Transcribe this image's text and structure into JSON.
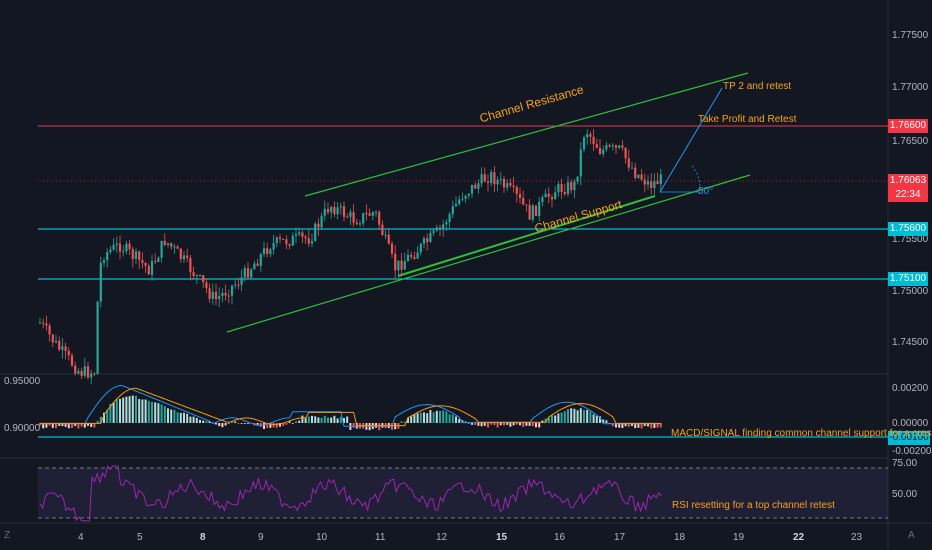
{
  "colors": {
    "background": "#131722",
    "up": "#26a69a",
    "down": "#ef5350",
    "resistance_line": "#f23645",
    "support_line": "#00e5ff",
    "channel": "#2fbf3a",
    "annotation": "#f7a21b",
    "macd": "#2196f3",
    "signal": "#ff9800",
    "rsi": "#9c27b0"
  },
  "price_axis": {
    "ticks": [
      "1.77500",
      "1.77000",
      "1.76500",
      "1.75500",
      "1.75000",
      "1.74500"
    ]
  },
  "price_tags": [
    {
      "id": "resistance",
      "label": "1.76600",
      "color": "#f23645"
    },
    {
      "id": "current",
      "label": "1.76063",
      "color": "#f23645"
    },
    {
      "id": "countdown",
      "label": "22:34",
      "color": "#f23645"
    },
    {
      "id": "support-upper",
      "label": "1.75600",
      "color": "#00bcd4"
    },
    {
      "id": "support-lower",
      "label": "1.75100",
      "color": "#00bcd4"
    }
  ],
  "annotations": {
    "channel_resistance": "Channel Resistance",
    "channel_support": "Channel Support",
    "tp2": "TP 2 and retest",
    "take_profit": "Take Profit and Retest",
    "angle": "50°",
    "macd_note": "MACD/SIGNAL finding common channel support for a cross",
    "rsi_note": "RSI resetting for a top channel retest"
  },
  "macd_pane": {
    "left_labels": [
      "0.95000",
      "0.90000"
    ],
    "right_labels": [
      "0.00200",
      "0.00000",
      "-0.00200"
    ],
    "tag": "-0.00100"
  },
  "rsi_pane": {
    "right_labels": [
      "75.00",
      "50.00"
    ]
  },
  "time_axis": {
    "labels": [
      {
        "text": "4",
        "bold": false
      },
      {
        "text": "5",
        "bold": false
      },
      {
        "text": "8",
        "bold": true
      },
      {
        "text": "9",
        "bold": false
      },
      {
        "text": "10",
        "bold": false
      },
      {
        "text": "11",
        "bold": false
      },
      {
        "text": "12",
        "bold": false
      },
      {
        "text": "15",
        "bold": true
      },
      {
        "text": "16",
        "bold": false
      },
      {
        "text": "17",
        "bold": false
      },
      {
        "text": "18",
        "bold": false
      },
      {
        "text": "19",
        "bold": false
      },
      {
        "text": "22",
        "bold": true
      },
      {
        "text": "23",
        "bold": false
      }
    ]
  },
  "corner_labels": {
    "left": "Z",
    "right": "A"
  }
}
